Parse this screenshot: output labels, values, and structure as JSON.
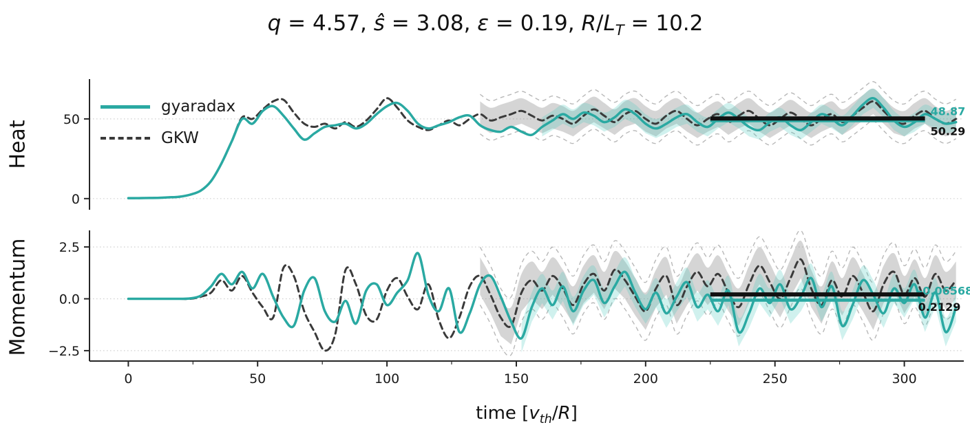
{
  "title": {
    "text": "q = 4.57, ŝ = 3.08, ε = 0.19, R/L_T = 10.2",
    "segments": [
      {
        "t": "q",
        "i": true
      },
      {
        "t": " = 4.57, "
      },
      {
        "t": "ŝ",
        "i": true
      },
      {
        "t": " = 3.08, "
      },
      {
        "t": "ε",
        "i": true
      },
      {
        "t": " = 0.19, "
      },
      {
        "t": "R",
        "i": true
      },
      {
        "t": "/"
      },
      {
        "t": "L",
        "i": true
      },
      {
        "t": "T",
        "i": true,
        "sub": true
      },
      {
        "t": " = 10.2"
      }
    ]
  },
  "legend": {
    "items": [
      {
        "label": "gyaradax",
        "color": "#2aa9a2",
        "dash": "solid"
      },
      {
        "label": "GKW",
        "color": "#3a3a3a",
        "dash": "dashed"
      }
    ]
  },
  "xlabel": {
    "text": "time [v_th/R]",
    "segments": [
      {
        "t": "time ["
      },
      {
        "t": "v",
        "i": true
      },
      {
        "t": "th",
        "i": true,
        "sub": true
      },
      {
        "t": "/"
      },
      {
        "t": "R",
        "i": true
      },
      {
        "t": "]"
      }
    ]
  },
  "colors": {
    "gyaradax": "#2aa9a2",
    "gkw": "#3a3a3a",
    "band_gray": "rgba(128,128,128,0.33)",
    "band_gray_edge": "rgba(160,160,160,0.75)",
    "band_teal": "rgba(72,200,190,0.26)",
    "grid": "#cfcfcf",
    "spine": "#262626"
  },
  "chart_data": [
    {
      "type": "line",
      "ylabel": "Heat",
      "xlim": [
        -15,
        323
      ],
      "ylim": [
        -7,
        75
      ],
      "yticks": [
        {
          "v": 0,
          "label": "0"
        },
        {
          "v": 50,
          "label": "50"
        }
      ],
      "xticks": [],
      "x": [
        0,
        4,
        8,
        12,
        16,
        20,
        24,
        28,
        32,
        36,
        40,
        44,
        48,
        52,
        56,
        60,
        64,
        68,
        72,
        76,
        80,
        84,
        88,
        92,
        96,
        100,
        104,
        108,
        112,
        116,
        120,
        124,
        128,
        132,
        136,
        140,
        144,
        148,
        152,
        156,
        160,
        164,
        168,
        172,
        176,
        180,
        184,
        188,
        192,
        196,
        200,
        204,
        208,
        212,
        216,
        220,
        224,
        228,
        232,
        236,
        240,
        244,
        248,
        252,
        256,
        260,
        264,
        268,
        272,
        276,
        280,
        284,
        288,
        292,
        296,
        300,
        304,
        308,
        312,
        316,
        320
      ],
      "series": [
        {
          "name": "gyaradax",
          "color": "#2aa9a2",
          "dash": "solid",
          "values": [
            0.3,
            0.3,
            0.4,
            0.5,
            0.8,
            1.2,
            2.5,
            5,
            11,
            22,
            36,
            50,
            47,
            55,
            58,
            52,
            44,
            37,
            41,
            45,
            46,
            47,
            44,
            47,
            53,
            58,
            60,
            55,
            47,
            44,
            46,
            48,
            51,
            52,
            46,
            43,
            42,
            45,
            42,
            40,
            45,
            49,
            53,
            50,
            54,
            52,
            48,
            51,
            56,
            53,
            47,
            44,
            47,
            51,
            53,
            48,
            45,
            50,
            54,
            50,
            45,
            43,
            48,
            51,
            46,
            43,
            48,
            53,
            50,
            46,
            52,
            59,
            63,
            57,
            49,
            45,
            48,
            53,
            50,
            47,
            48
          ],
          "band": {
            "halfwidth": 6,
            "start": 160
          },
          "mean": {
            "value": 48.87,
            "label": "48.87",
            "span": [
              225,
              308
            ],
            "label_side": "above"
          }
        },
        {
          "name": "GKW",
          "color": "#3a3a3a",
          "dash": "dashed",
          "values": [
            0.3,
            0.3,
            0.4,
            0.5,
            0.8,
            1.2,
            2.5,
            5,
            11,
            22,
            36,
            51,
            50,
            56,
            61,
            62,
            54,
            47,
            45,
            47,
            44,
            48,
            45,
            49,
            56,
            63,
            57,
            49,
            45,
            43,
            46,
            49,
            46,
            50,
            53,
            49,
            51,
            53,
            55,
            52,
            49,
            52,
            50,
            47,
            52,
            56,
            52,
            48,
            53,
            55,
            50,
            47,
            52,
            55,
            50,
            46,
            50,
            53,
            48,
            52,
            55,
            50,
            46,
            50,
            54,
            50,
            46,
            50,
            53,
            48,
            52,
            57,
            61,
            55,
            49,
            47,
            52,
            55,
            50,
            47,
            50
          ],
          "band": {
            "halfwidth": 8,
            "start": 136
          },
          "mean": {
            "value": 50.29,
            "label": "50.29",
            "span": [
              225,
              308
            ],
            "label_side": "below"
          }
        }
      ]
    },
    {
      "type": "line",
      "ylabel": "Momentum",
      "xlim": [
        -15,
        323
      ],
      "ylim": [
        -3,
        3.3
      ],
      "yticks": [
        {
          "v": 2.5,
          "label": "2.5"
        },
        {
          "v": 0,
          "label": "0.0"
        },
        {
          "v": -2.5,
          "label": "−2.5"
        }
      ],
      "xticks": [
        {
          "v": 0,
          "label": "0"
        },
        {
          "v": 50,
          "label": "50"
        },
        {
          "v": 100,
          "label": "100"
        },
        {
          "v": 150,
          "label": "150"
        },
        {
          "v": 200,
          "label": "200"
        },
        {
          "v": 250,
          "label": "250"
        },
        {
          "v": 300,
          "label": "300"
        }
      ],
      "x": [
        0,
        4,
        8,
        12,
        16,
        20,
        24,
        28,
        32,
        36,
        40,
        44,
        48,
        52,
        56,
        60,
        64,
        68,
        72,
        76,
        80,
        84,
        88,
        92,
        96,
        100,
        104,
        108,
        112,
        116,
        120,
        124,
        128,
        132,
        136,
        140,
        144,
        148,
        152,
        156,
        160,
        164,
        168,
        172,
        176,
        180,
        184,
        188,
        192,
        196,
        200,
        204,
        208,
        212,
        216,
        220,
        224,
        228,
        232,
        236,
        240,
        244,
        248,
        252,
        256,
        260,
        264,
        268,
        272,
        276,
        280,
        284,
        288,
        292,
        296,
        300,
        304,
        308,
        312,
        316,
        320
      ],
      "series": [
        {
          "name": "gyaradax",
          "color": "#2aa9a2",
          "dash": "solid",
          "values": [
            0,
            0,
            0,
            0,
            0,
            0,
            0.02,
            0.15,
            0.6,
            1.2,
            0.7,
            1.3,
            0.5,
            1.2,
            0.1,
            -0.9,
            -1.3,
            0.4,
            1.0,
            -0.6,
            -1.1,
            -0.1,
            -1.2,
            0.4,
            0.7,
            -0.3,
            0.3,
            0.9,
            2.2,
            0.2,
            -0.6,
            0.5,
            -1.6,
            -0.7,
            0.7,
            1.1,
            0.1,
            -1.1,
            -1.9,
            -0.4,
            0.5,
            -0.3,
            0.6,
            -0.6,
            0.4,
            0.9,
            -0.2,
            0.6,
            1.3,
            0.3,
            -0.5,
            0.3,
            -0.7,
            0.1,
            0.8,
            -0.4,
            0.2,
            -0.6,
            0.4,
            -1.6,
            -0.7,
            0.5,
            -0.2,
            0.7,
            -0.5,
            0.1,
            1.0,
            -0.4,
            0.6,
            -1.3,
            -0.3,
            0.9,
            0.2,
            -0.7,
            0.5,
            -0.2,
            0.7,
            -0.9,
            0.3,
            -1.6,
            -0.4
          ],
          "band": {
            "halfwidth": 0.7,
            "start": 150
          },
          "mean": {
            "value": -0.06568,
            "label": "-0.06568",
            "span": [
              225,
              308
            ],
            "label_side": "above"
          }
        },
        {
          "name": "GKW",
          "color": "#3a3a3a",
          "dash": "dashed",
          "values": [
            0,
            0,
            0,
            0,
            0,
            0,
            0,
            0.1,
            0.3,
            0.9,
            0.4,
            1.1,
            0.3,
            -0.4,
            -0.9,
            1.5,
            1.1,
            -0.6,
            -1.6,
            -2.5,
            -1.7,
            1.4,
            0.7,
            -0.8,
            -1.0,
            0.4,
            1.0,
            0.1,
            -0.5,
            0.7,
            -1.0,
            -1.9,
            -0.9,
            0.6,
            1.1,
            0.2,
            -0.9,
            -1.3,
            0.3,
            0.9,
            0.4,
            1.1,
            0.5,
            -0.3,
            0.7,
            1.2,
            0.4,
            1.4,
            0.9,
            0.1,
            -0.6,
            0.5,
            1.1,
            -0.3,
            0.6,
            1.3,
            0.6,
            1.2,
            0.3,
            -0.4,
            0.7,
            1.6,
            0.8,
            0.0,
            1.0,
            1.9,
            0.5,
            -0.3,
            0.9,
            0.1,
            1.1,
            0.3,
            -0.6,
            0.7,
            1.3,
            0.2,
            1.0,
            0.1,
            1.2,
            0.4,
            0.9
          ],
          "band": {
            "halfwidth": 0.9,
            "start": 136
          },
          "mean": {
            "value": 0.2129,
            "label": "0.2129",
            "span": [
              225,
              308
            ],
            "label_side": "below"
          }
        }
      ]
    }
  ]
}
